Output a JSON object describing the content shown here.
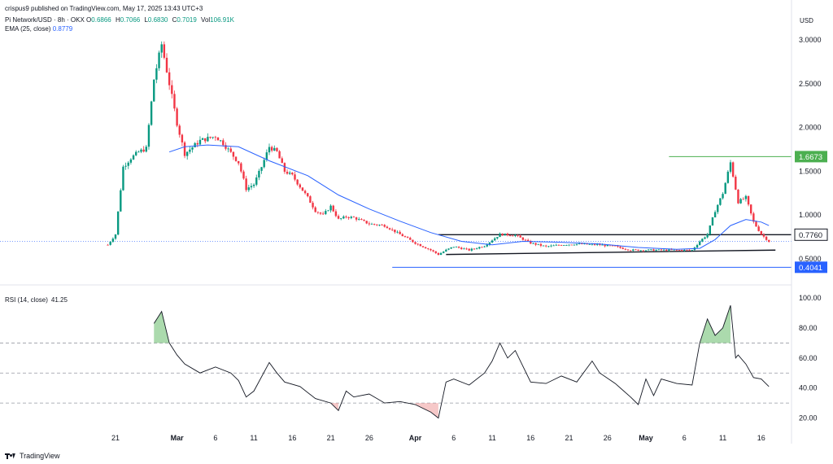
{
  "header": {
    "published": "crispus9 published on TradingView.com, May 17, 2025 13:43 UTC+3",
    "symbol": "Pi Network/USD · 8h · OKX",
    "ohlc": [
      {
        "k": "O",
        "v": "0.6866"
      },
      {
        "k": "H",
        "v": "0.7066"
      },
      {
        "k": "L",
        "v": "0.6830"
      },
      {
        "k": "C",
        "v": "0.7019"
      },
      {
        "k": "Vol",
        "v": "106.91K"
      }
    ],
    "ema_label": "EMA (25, close)",
    "ema_value": "0.8779",
    "currency": "USD"
  },
  "rsi_header": {
    "label": "RSI (14, close)",
    "value": "41.25"
  },
  "brand": "TradingView",
  "colors": {
    "up": "#089981",
    "down": "#f23645",
    "ema": "#2962ff",
    "green_line": "#4caf50",
    "blue_line": "#2962ff"
  },
  "chart_data": [
    {
      "type": "candlestick",
      "title": "Pi Network/USD · 8h · OKX",
      "ylabel": "USD",
      "ylim": [
        0.3,
        3.1
      ],
      "y_ticks": [
        "3.0000",
        "2.5000",
        "2.0000",
        "1.5000",
        "1.0000",
        "0.5000"
      ],
      "x_ticks": [
        "21",
        "Mar",
        "6",
        "11",
        "16",
        "21",
        "26",
        "Apr",
        "6",
        "11",
        "16",
        "21",
        "26",
        "May",
        "6",
        "11",
        "16"
      ],
      "price_labels": [
        {
          "label": "1.6673",
          "value": 1.6673,
          "color": "#4caf50"
        },
        {
          "label": "0.7760",
          "value": 0.776,
          "color": "#131722"
        },
        {
          "label": "0.4041",
          "value": 0.4041,
          "color": "#2962ff"
        }
      ],
      "close_path": [
        {
          "t": "2025-02-20",
          "v": 0.66
        },
        {
          "t": "2025-02-21",
          "v": 0.78
        },
        {
          "t": "2025-02-22",
          "v": 1.55
        },
        {
          "t": "2025-02-23",
          "v": 1.65
        },
        {
          "t": "2025-02-24",
          "v": 1.72
        },
        {
          "t": "2025-02-25",
          "v": 1.76
        },
        {
          "t": "2025-02-26",
          "v": 2.55
        },
        {
          "t": "2025-02-27",
          "v": 2.95
        },
        {
          "t": "2025-02-28",
          "v": 2.5
        },
        {
          "t": "2025-03-01",
          "v": 2.05
        },
        {
          "t": "2025-03-02",
          "v": 1.7
        },
        {
          "t": "2025-03-04",
          "v": 1.85
        },
        {
          "t": "2025-03-06",
          "v": 1.9
        },
        {
          "t": "2025-03-07",
          "v": 1.82
        },
        {
          "t": "2025-03-09",
          "v": 1.6
        },
        {
          "t": "2025-03-10",
          "v": 1.3
        },
        {
          "t": "2025-03-11",
          "v": 1.35
        },
        {
          "t": "2025-03-12",
          "v": 1.55
        },
        {
          "t": "2025-03-13",
          "v": 1.78
        },
        {
          "t": "2025-03-14",
          "v": 1.72
        },
        {
          "t": "2025-03-15",
          "v": 1.5
        },
        {
          "t": "2025-03-16",
          "v": 1.45
        },
        {
          "t": "2025-03-18",
          "v": 1.2
        },
        {
          "t": "2025-03-19",
          "v": 1.05
        },
        {
          "t": "2025-03-20",
          "v": 1.0
        },
        {
          "t": "2025-03-21",
          "v": 1.1
        },
        {
          "t": "2025-03-22",
          "v": 0.95
        },
        {
          "t": "2025-03-23",
          "v": 0.98
        },
        {
          "t": "2025-03-24",
          "v": 0.97
        },
        {
          "t": "2025-03-26",
          "v": 0.9
        },
        {
          "t": "2025-03-28",
          "v": 0.88
        },
        {
          "t": "2025-03-30",
          "v": 0.78
        },
        {
          "t": "2025-04-01",
          "v": 0.68
        },
        {
          "t": "2025-04-03",
          "v": 0.6
        },
        {
          "t": "2025-04-04",
          "v": 0.55
        },
        {
          "t": "2025-04-05",
          "v": 0.6
        },
        {
          "t": "2025-04-06",
          "v": 0.64
        },
        {
          "t": "2025-04-08",
          "v": 0.6
        },
        {
          "t": "2025-04-10",
          "v": 0.65
        },
        {
          "t": "2025-04-12",
          "v": 0.78
        },
        {
          "t": "2025-04-14",
          "v": 0.77
        },
        {
          "t": "2025-04-16",
          "v": 0.68
        },
        {
          "t": "2025-04-18",
          "v": 0.64
        },
        {
          "t": "2025-04-20",
          "v": 0.66
        },
        {
          "t": "2025-04-22",
          "v": 0.67
        },
        {
          "t": "2025-04-25",
          "v": 0.66
        },
        {
          "t": "2025-04-27",
          "v": 0.64
        },
        {
          "t": "2025-04-29",
          "v": 0.6
        },
        {
          "t": "2025-05-01",
          "v": 0.6
        },
        {
          "t": "2025-05-03",
          "v": 0.6
        },
        {
          "t": "2025-05-05",
          "v": 0.6
        },
        {
          "t": "2025-05-07",
          "v": 0.6
        },
        {
          "t": "2025-05-08",
          "v": 0.7
        },
        {
          "t": "2025-05-09",
          "v": 0.78
        },
        {
          "t": "2025-05-10",
          "v": 1.05
        },
        {
          "t": "2025-05-11",
          "v": 1.25
        },
        {
          "t": "2025-05-12",
          "v": 1.6
        },
        {
          "t": "2025-05-13",
          "v": 1.15
        },
        {
          "t": "2025-05-14",
          "v": 1.2
        },
        {
          "t": "2025-05-15",
          "v": 0.92
        },
        {
          "t": "2025-05-16",
          "v": 0.78
        },
        {
          "t": "2025-05-17",
          "v": 0.7
        }
      ],
      "ema_path": [
        {
          "t": "2025-02-28",
          "v": 1.72
        },
        {
          "t": "2025-03-02",
          "v": 1.78
        },
        {
          "t": "2025-03-05",
          "v": 1.8
        },
        {
          "t": "2025-03-09",
          "v": 1.78
        },
        {
          "t": "2025-03-13",
          "v": 1.62
        },
        {
          "t": "2025-03-18",
          "v": 1.45
        },
        {
          "t": "2025-03-22",
          "v": 1.23
        },
        {
          "t": "2025-03-26",
          "v": 1.07
        },
        {
          "t": "2025-03-30",
          "v": 0.93
        },
        {
          "t": "2025-04-03",
          "v": 0.8
        },
        {
          "t": "2025-04-07",
          "v": 0.7
        },
        {
          "t": "2025-04-11",
          "v": 0.66
        },
        {
          "t": "2025-04-15",
          "v": 0.7
        },
        {
          "t": "2025-04-20",
          "v": 0.69
        },
        {
          "t": "2025-04-25",
          "v": 0.67
        },
        {
          "t": "2025-04-30",
          "v": 0.63
        },
        {
          "t": "2025-05-05",
          "v": 0.61
        },
        {
          "t": "2025-05-08",
          "v": 0.62
        },
        {
          "t": "2025-05-10",
          "v": 0.72
        },
        {
          "t": "2025-05-12",
          "v": 0.88
        },
        {
          "t": "2025-05-14",
          "v": 0.95
        },
        {
          "t": "2025-05-16",
          "v": 0.92
        },
        {
          "t": "2025-05-17",
          "v": 0.88
        }
      ],
      "resistance_line": {
        "from": "2025-04-04",
        "to": "2025-05-17",
        "v": 0.776
      },
      "support_line": {
        "from": "2025-04-05",
        "v_from": 0.55,
        "to": "2025-05-17",
        "v_to": 0.6
      },
      "low_line": {
        "from": "2025-03-29",
        "to": "2025-05-17",
        "v": 0.4041
      },
      "high_line": {
        "from": "2025-05-04",
        "to": "2025-05-17",
        "v": 1.6673
      }
    },
    {
      "type": "line",
      "title": "RSI (14, close)",
      "ylim": [
        10,
        100
      ],
      "y_ticks": [
        "100.00",
        "80.00",
        "60.00",
        "40.00",
        "20.00"
      ],
      "levels": [
        70,
        50,
        30
      ],
      "path": [
        {
          "t": "2025-02-26",
          "v": 83
        },
        {
          "t": "2025-02-27",
          "v": 91
        },
        {
          "t": "2025-02-28",
          "v": 70
        },
        {
          "t": "2025-03-01",
          "v": 62
        },
        {
          "t": "2025-03-02",
          "v": 56
        },
        {
          "t": "2025-03-04",
          "v": 50
        },
        {
          "t": "2025-03-06",
          "v": 54
        },
        {
          "t": "2025-03-08",
          "v": 50
        },
        {
          "t": "2025-03-09",
          "v": 45
        },
        {
          "t": "2025-03-10",
          "v": 34
        },
        {
          "t": "2025-03-11",
          "v": 38
        },
        {
          "t": "2025-03-13",
          "v": 57
        },
        {
          "t": "2025-03-14",
          "v": 50
        },
        {
          "t": "2025-03-15",
          "v": 44
        },
        {
          "t": "2025-03-17",
          "v": 41
        },
        {
          "t": "2025-03-19",
          "v": 33
        },
        {
          "t": "2025-03-21",
          "v": 30
        },
        {
          "t": "2025-03-22",
          "v": 25
        },
        {
          "t": "2025-03-23",
          "v": 38
        },
        {
          "t": "2025-03-24",
          "v": 34
        },
        {
          "t": "2025-03-26",
          "v": 36
        },
        {
          "t": "2025-03-28",
          "v": 30
        },
        {
          "t": "2025-03-30",
          "v": 31
        },
        {
          "t": "2025-04-01",
          "v": 29
        },
        {
          "t": "2025-04-03",
          "v": 24
        },
        {
          "t": "2025-04-04",
          "v": 20
        },
        {
          "t": "2025-04-05",
          "v": 44
        },
        {
          "t": "2025-04-06",
          "v": 46
        },
        {
          "t": "2025-04-08",
          "v": 42
        },
        {
          "t": "2025-04-10",
          "v": 50
        },
        {
          "t": "2025-04-11",
          "v": 58
        },
        {
          "t": "2025-04-12",
          "v": 70
        },
        {
          "t": "2025-04-13",
          "v": 60
        },
        {
          "t": "2025-04-14",
          "v": 65
        },
        {
          "t": "2025-04-16",
          "v": 44
        },
        {
          "t": "2025-04-18",
          "v": 43
        },
        {
          "t": "2025-04-20",
          "v": 48
        },
        {
          "t": "2025-04-22",
          "v": 44
        },
        {
          "t": "2025-04-24",
          "v": 58
        },
        {
          "t": "2025-04-25",
          "v": 50
        },
        {
          "t": "2025-04-27",
          "v": 43
        },
        {
          "t": "2025-04-29",
          "v": 34
        },
        {
          "t": "2025-04-30",
          "v": 29
        },
        {
          "t": "2025-05-01",
          "v": 46
        },
        {
          "t": "2025-05-02",
          "v": 35
        },
        {
          "t": "2025-05-03",
          "v": 46
        },
        {
          "t": "2025-05-05",
          "v": 43
        },
        {
          "t": "2025-05-07",
          "v": 42
        },
        {
          "t": "2025-05-08",
          "v": 70
        },
        {
          "t": "2025-05-09",
          "v": 86
        },
        {
          "t": "2025-05-10",
          "v": 75
        },
        {
          "t": "2025-05-11",
          "v": 80
        },
        {
          "t": "2025-05-12",
          "v": 95
        },
        {
          "t": "2025-05-12T16",
          "v": 60
        },
        {
          "t": "2025-05-13",
          "v": 62
        },
        {
          "t": "2025-05-14",
          "v": 56
        },
        {
          "t": "2025-05-15",
          "v": 47
        },
        {
          "t": "2025-05-16",
          "v": 46
        },
        {
          "t": "2025-05-17",
          "v": 41
        }
      ]
    }
  ]
}
